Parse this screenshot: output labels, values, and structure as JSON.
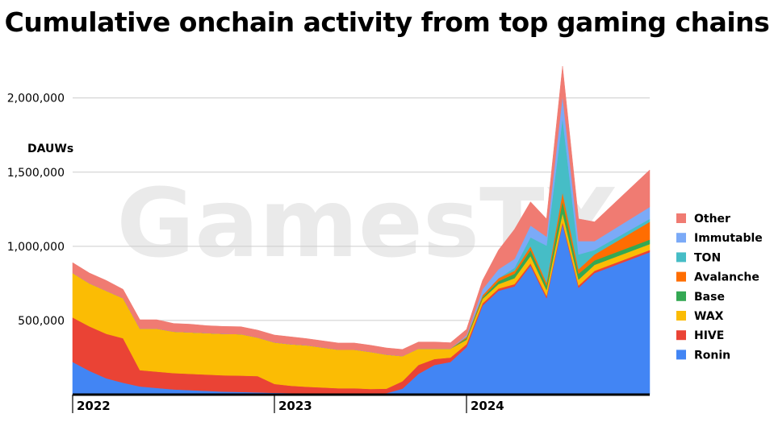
{
  "chart_data": {
    "type": "area",
    "stacked": true,
    "title": "Cumulative onchain activity from top gaming chains",
    "ylabel": "DAUWs",
    "xlabel": "",
    "watermark": "GamesTX",
    "ylim": [
      0,
      2400000
    ],
    "yticks": [
      {
        "value": 500000,
        "label": "500,000"
      },
      {
        "value": 1000000,
        "label": "1,000,000"
      },
      {
        "value": 1500000,
        "label": "1,500,000"
      },
      {
        "value": 2000000,
        "label": "2,000,000"
      }
    ],
    "xticks": [
      {
        "value": "2022-01",
        "label": "2022"
      },
      {
        "value": "2023-01",
        "label": "2023"
      },
      {
        "value": "2024-01",
        "label": "2024"
      }
    ],
    "grid": true,
    "legend_position": "right",
    "x": [
      "2022-01",
      "2022-02",
      "2022-03",
      "2022-04",
      "2022-05",
      "2022-06",
      "2022-07",
      "2022-08",
      "2022-09",
      "2022-10",
      "2022-11",
      "2022-12",
      "2023-01",
      "2023-02",
      "2023-03",
      "2023-04",
      "2023-05",
      "2023-06",
      "2023-07",
      "2023-08",
      "2023-09",
      "2023-10",
      "2023-11",
      "2023-12",
      "2024-01",
      "2024-02",
      "2024-03",
      "2024-04",
      "2024-05",
      "2024-06",
      "2024-07",
      "2024-08",
      "2024-09",
      "2024-10"
    ],
    "series": [
      {
        "name": "Ronin",
        "color": "#4285f4",
        "values": [
          220000,
          160000,
          110000,
          80000,
          55000,
          45000,
          35000,
          30000,
          25000,
          20000,
          18000,
          15000,
          12000,
          10000,
          8000,
          8000,
          8000,
          8000,
          8000,
          10000,
          40000,
          140000,
          200000,
          220000,
          320000,
          600000,
          700000,
          730000,
          870000,
          650000,
          1150000,
          720000,
          820000,
          960000
        ]
      },
      {
        "name": "HIVE",
        "color": "#ea4335",
        "values": [
          300000,
          300000,
          300000,
          300000,
          110000,
          110000,
          110000,
          110000,
          110000,
          110000,
          110000,
          110000,
          60000,
          50000,
          45000,
          40000,
          35000,
          35000,
          30000,
          30000,
          50000,
          60000,
          40000,
          30000,
          20000,
          15000,
          15000,
          15000,
          15000,
          15000,
          15000,
          15000,
          15000,
          15000
        ]
      },
      {
        "name": "WAX",
        "color": "#fbbc04",
        "values": [
          300000,
          290000,
          290000,
          270000,
          280000,
          290000,
          280000,
          280000,
          280000,
          280000,
          280000,
          260000,
          280000,
          280000,
          280000,
          270000,
          260000,
          260000,
          250000,
          230000,
          170000,
          110000,
          70000,
          60000,
          30000,
          30000,
          30000,
          40000,
          50000,
          40000,
          60000,
          40000,
          40000,
          40000
        ]
      },
      {
        "name": "Base",
        "color": "#34a853",
        "values": [
          0,
          0,
          0,
          0,
          0,
          0,
          0,
          0,
          0,
          0,
          0,
          0,
          0,
          0,
          0,
          0,
          0,
          0,
          0,
          0,
          0,
          0,
          0,
          0,
          10000,
          10000,
          20000,
          30000,
          40000,
          30000,
          80000,
          40000,
          30000,
          30000
        ]
      },
      {
        "name": "Avalanche",
        "color": "#ff6d01",
        "values": [
          0,
          0,
          0,
          0,
          0,
          0,
          0,
          0,
          0,
          0,
          0,
          0,
          0,
          0,
          0,
          0,
          0,
          0,
          0,
          0,
          0,
          0,
          0,
          0,
          10000,
          15000,
          20000,
          20000,
          25000,
          20000,
          60000,
          30000,
          40000,
          120000
        ]
      },
      {
        "name": "TON",
        "color": "#46bdc6",
        "values": [
          0,
          0,
          0,
          0,
          0,
          0,
          0,
          0,
          0,
          0,
          0,
          0,
          0,
          0,
          0,
          0,
          0,
          0,
          0,
          0,
          0,
          0,
          0,
          0,
          0,
          0,
          0,
          20000,
          60000,
          250000,
          500000,
          100000,
          30000,
          20000
        ]
      },
      {
        "name": "Immutable",
        "color": "#7baaf7",
        "values": [
          0,
          0,
          0,
          0,
          0,
          0,
          0,
          0,
          0,
          0,
          0,
          0,
          0,
          0,
          0,
          0,
          0,
          0,
          0,
          0,
          0,
          0,
          0,
          0,
          10000,
          40000,
          60000,
          60000,
          80000,
          60000,
          150000,
          90000,
          60000,
          80000
        ]
      },
      {
        "name": "Other",
        "color": "#f07b72",
        "values": [
          70000,
          70000,
          70000,
          60000,
          60000,
          60000,
          55000,
          55000,
          50000,
          50000,
          50000,
          50000,
          50000,
          50000,
          45000,
          45000,
          45000,
          45000,
          45000,
          45000,
          45000,
          45000,
          45000,
          40000,
          40000,
          60000,
          130000,
          200000,
          160000,
          120000,
          200000,
          150000,
          130000,
          250000
        ]
      }
    ]
  }
}
